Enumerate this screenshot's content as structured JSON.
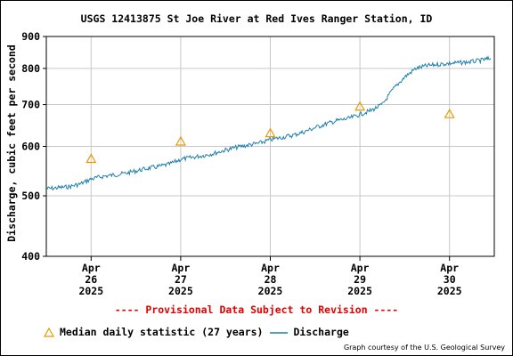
{
  "chart_data": {
    "type": "line",
    "title": "USGS 12413875 St Joe River at Red Ives Ranger Station, ID",
    "ylabel": "Discharge, cubic feet per second",
    "y_scale": "log",
    "ylim": [
      400,
      900
    ],
    "yticks": [
      400,
      500,
      600,
      700,
      800,
      900
    ],
    "ytick_labels": [
      "400",
      "500",
      "600",
      "700",
      "800",
      "900"
    ],
    "xlim": [
      "2025-04-25 12:00",
      "2025-04-30 12:00"
    ],
    "xticks": [
      {
        "month": "Apr",
        "day": "26",
        "year": "2025",
        "date": "2025-04-26 00:00"
      },
      {
        "month": "Apr",
        "day": "27",
        "year": "2025",
        "date": "2025-04-27 00:00"
      },
      {
        "month": "Apr",
        "day": "28",
        "year": "2025",
        "date": "2025-04-28 00:00"
      },
      {
        "month": "Apr",
        "day": "29",
        "year": "2025",
        "date": "2025-04-29 00:00"
      },
      {
        "month": "Apr",
        "day": "30",
        "year": "2025",
        "date": "2025-04-30 00:00"
      }
    ],
    "grid": true,
    "series": [
      {
        "name": "Discharge",
        "color": "#1f7fad",
        "points": [
          {
            "x": "2025-04-25 12:00",
            "y": 513
          },
          {
            "x": "2025-04-25 15:00",
            "y": 515
          },
          {
            "x": "2025-04-25 18:00",
            "y": 517
          },
          {
            "x": "2025-04-25 21:00",
            "y": 522
          },
          {
            "x": "2025-04-26 00:00",
            "y": 532
          },
          {
            "x": "2025-04-26 03:00",
            "y": 537
          },
          {
            "x": "2025-04-26 06:00",
            "y": 540
          },
          {
            "x": "2025-04-26 09:00",
            "y": 543
          },
          {
            "x": "2025-04-26 12:00",
            "y": 548
          },
          {
            "x": "2025-04-26 15:00",
            "y": 553
          },
          {
            "x": "2025-04-26 18:00",
            "y": 557
          },
          {
            "x": "2025-04-26 21:00",
            "y": 562
          },
          {
            "x": "2025-04-27 00:00",
            "y": 572
          },
          {
            "x": "2025-04-27 03:00",
            "y": 576
          },
          {
            "x": "2025-04-27 06:00",
            "y": 580
          },
          {
            "x": "2025-04-27 09:00",
            "y": 585
          },
          {
            "x": "2025-04-27 12:00",
            "y": 592
          },
          {
            "x": "2025-04-27 15:00",
            "y": 598
          },
          {
            "x": "2025-04-27 18:00",
            "y": 603
          },
          {
            "x": "2025-04-27 21:00",
            "y": 607
          },
          {
            "x": "2025-04-28 00:00",
            "y": 615
          },
          {
            "x": "2025-04-28 03:00",
            "y": 620
          },
          {
            "x": "2025-04-28 06:00",
            "y": 625
          },
          {
            "x": "2025-04-28 09:00",
            "y": 633
          },
          {
            "x": "2025-04-28 12:00",
            "y": 643
          },
          {
            "x": "2025-04-28 15:00",
            "y": 652
          },
          {
            "x": "2025-04-28 18:00",
            "y": 660
          },
          {
            "x": "2025-04-28 21:00",
            "y": 665
          },
          {
            "x": "2025-04-29 00:00",
            "y": 675
          },
          {
            "x": "2025-04-29 03:00",
            "y": 685
          },
          {
            "x": "2025-04-29 06:00",
            "y": 700
          },
          {
            "x": "2025-04-29 09:00",
            "y": 742
          },
          {
            "x": "2025-04-29 12:00",
            "y": 775
          },
          {
            "x": "2025-04-29 15:00",
            "y": 800
          },
          {
            "x": "2025-04-29 18:00",
            "y": 808
          },
          {
            "x": "2025-04-29 21:00",
            "y": 812
          },
          {
            "x": "2025-04-30 00:00",
            "y": 815
          },
          {
            "x": "2025-04-30 03:00",
            "y": 817
          },
          {
            "x": "2025-04-30 06:00",
            "y": 820
          },
          {
            "x": "2025-04-30 09:00",
            "y": 825
          },
          {
            "x": "2025-04-30 11:00",
            "y": 830
          }
        ]
      },
      {
        "name": "Median daily statistic (27 years)",
        "color": "#e69b00",
        "marker": "triangle",
        "points": [
          {
            "x": "2025-04-26 00:00",
            "y": 573
          },
          {
            "x": "2025-04-27 00:00",
            "y": 611
          },
          {
            "x": "2025-04-28 00:00",
            "y": 630
          },
          {
            "x": "2025-04-29 00:00",
            "y": 695
          },
          {
            "x": "2025-04-30 00:00",
            "y": 676
          }
        ]
      }
    ]
  },
  "provisional_notice": "---- Provisional Data Subject to Revision ----",
  "legend": {
    "median_label": "Median daily statistic (27 years)",
    "discharge_label": "Discharge"
  },
  "credit": "Graph courtesy of the U.S. Geological Survey"
}
